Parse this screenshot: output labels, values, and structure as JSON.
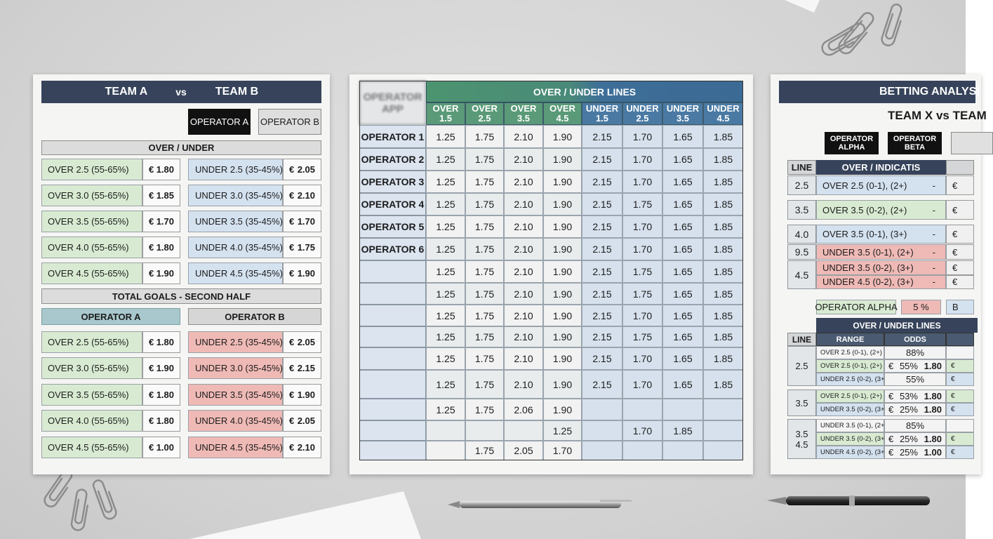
{
  "currency": "€",
  "sheet1": {
    "header": {
      "team_a": "TEAM A",
      "vs": "vs",
      "team_b": "TEAM B"
    },
    "buttons": [
      "OPERATOR A",
      "OPERATOR B"
    ],
    "section1": {
      "title": "OVER / UNDER",
      "rows": [
        {
          "over": "OVER 2.5 (55-65%)",
          "over_odds": "1.80",
          "under": "UNDER 2.5 (35-45%)",
          "under_odds": "2.05"
        },
        {
          "over": "OVER 3.0 (55-65%)",
          "over_odds": "1.85",
          "under": "UNDER 3.0 (35-45%)",
          "under_odds": "2.10"
        },
        {
          "over": "OVER 3.5 (55-65%)",
          "over_odds": "1.70",
          "under": "UNDER 3.5 (35-45%)",
          "under_odds": "1.70"
        },
        {
          "over": "OVER 4.0 (55-65%)",
          "over_odds": "1.80",
          "under": "UNDER 4.0 (35-45%)",
          "under_odds": "1.75"
        },
        {
          "over": "OVER 4.5 (55-65%)",
          "over_odds": "1.90",
          "under": "UNDER 4.5 (35-45%)",
          "under_odds": "1.90"
        }
      ]
    },
    "section2": {
      "title": "TOTAL GOALS - SECOND HALF",
      "columns": [
        "OPERATOR A",
        "OPERATOR B"
      ],
      "rows": [
        {
          "over": "OVER 2.5 (55-65%)",
          "over_odds": "1.80",
          "under": "UNDER 2.5 (35-45%)",
          "under_odds": "2.05"
        },
        {
          "over": "OVER 3.0 (55-65%)",
          "over_odds": "1.90",
          "under": "UNDER 3.0 (35-45%)",
          "under_odds": "2.15"
        },
        {
          "over": "OVER 3.5 (55-65%)",
          "over_odds": "1.80",
          "under": "UNDER 3.5 (35-45%)",
          "under_odds": "1.90"
        },
        {
          "over": "OVER 4.0 (55-65%)",
          "over_odds": "1.80",
          "under": "UNDER 4.0 (35-45%)",
          "under_odds": "2.05"
        },
        {
          "over": "OVER 4.5 (55-65%)",
          "over_odds": "1.00",
          "under": "UNDER 4.5 (35-45%)",
          "under_odds": "2.10"
        }
      ]
    }
  },
  "sheet2": {
    "corner": "OPERATOR APP",
    "title": "OVER / UNDER LINES",
    "columns": [
      "OVER 1.5",
      "OVER 2.5",
      "OVER 3.5",
      "OVER 4.5",
      "UNDER 1.5",
      "UNDER 2.5",
      "UNDER 3.5",
      "UNDER 4.5"
    ],
    "rows": [
      {
        "label": "OPERATOR 1",
        "values": [
          "1.25",
          "1.75",
          "2.10",
          "1.90",
          "2.15",
          "1.70",
          "1.65",
          "1.85"
        ]
      },
      {
        "label": "OPERATOR 2",
        "values": [
          "1.25",
          "1.75",
          "2.10",
          "1.90",
          "2.15",
          "1.70",
          "1.65",
          "1.85"
        ]
      },
      {
        "label": "OPERATOR 3",
        "values": [
          "1.25",
          "1.75",
          "2.10",
          "1.90",
          "2.15",
          "1.70",
          "1.65",
          "1.85"
        ]
      },
      {
        "label": "OPERATOR 4",
        "values": [
          "1.25",
          "1.75",
          "2.10",
          "1.90",
          "2.15",
          "1.75",
          "1.65",
          "1.85"
        ]
      },
      {
        "label": "OPERATOR 5",
        "values": [
          "1.25",
          "1.75",
          "2.10",
          "1.90",
          "2.15",
          "1.70",
          "1.65",
          "1.85"
        ]
      },
      {
        "label": "OPERATOR 6",
        "values": [
          "1.25",
          "1.75",
          "2.10",
          "1.90",
          "2.15",
          "1.70",
          "1.65",
          "1.85"
        ]
      },
      {
        "label": null,
        "values": [
          "1.25",
          "1.75",
          "2.10",
          "1.90",
          "2.15",
          "1.75",
          "1.65",
          "1.85"
        ]
      },
      {
        "label": null,
        "values": [
          "1.25",
          "1.75",
          "2.10",
          "1.90",
          "2.15",
          "1.75",
          "1.65",
          "1.85"
        ]
      },
      {
        "label": null,
        "values": [
          "1.25",
          "1.75",
          "2.10",
          "1.90",
          "2.15",
          "1.70",
          "1.65",
          "1.85"
        ]
      },
      {
        "label": null,
        "values": [
          "1.25",
          "1.75",
          "2.10",
          "1.90",
          "2.15",
          "1.75",
          "1.65",
          "1.85"
        ]
      },
      {
        "label": null,
        "values": [
          "1.25",
          "1.75",
          "2.10",
          "1.90",
          "2.15",
          "1.70",
          "1.65",
          "1.85"
        ]
      },
      {
        "label": null,
        "values": [
          "1.25",
          "1.75",
          "2.10",
          "1.90",
          "2.15",
          "1.70",
          "1.65",
          "1.85"
        ]
      },
      {
        "label": null,
        "values": [
          "1.25",
          "1.75",
          "2.06",
          "1.90",
          null,
          null,
          null,
          null
        ]
      },
      {
        "label": null,
        "values": [
          null,
          null,
          null,
          "1.25",
          null,
          "1.70",
          "1.85",
          null
        ]
      },
      {
        "label": null,
        "values": [
          null,
          "1.75",
          "2.05",
          "1.70",
          null,
          null,
          null,
          null
        ]
      }
    ]
  },
  "sheet3": {
    "title": "BETTING ANALYSI",
    "match": "TEAM X vs TEAM",
    "buttons": [
      "OPERATOR ALPHA",
      "OPERATOR BETA"
    ],
    "table1": {
      "columns": [
        "LINE",
        "OVER / INDICATIS"
      ],
      "rows": [
        {
          "line": "2.5",
          "tone": "blue",
          "items": [
            {
              "text": "OVER 2.5 (0-1), (2+)",
              "mark": "-"
            }
          ]
        },
        {
          "line": "3.5",
          "tone": "green",
          "items": [
            {
              "text": "OVER 3.5 (0-2), (2+)",
              "mark": "-"
            }
          ]
        },
        {
          "line": "4.0",
          "tone": "blue",
          "items": [
            {
              "text": "OVER 3.5 (0-1), (3+)",
              "mark": "-"
            }
          ]
        },
        {
          "line": "9.5",
          "tone": "pink",
          "items": [
            {
              "text": "UNDER 3.5 (0-1), (2+)",
              "mark": "-"
            }
          ]
        },
        {
          "line": "4.5",
          "tone": "pink",
          "items": [
            {
              "text": "UNDER 3.5 (0-2), (3+)",
              "mark": "-"
            },
            {
              "text": "UNDER 4.5 (0-2), (3+)",
              "mark": "-"
            }
          ]
        }
      ]
    },
    "summary": {
      "label": "OPERATOR ALPHA",
      "value": "5 %",
      "next": "B"
    },
    "table2": {
      "title": "OVER / UNDER LINES",
      "columns": [
        "LINE",
        "RANGE",
        "ODDS"
      ],
      "groups": [
        {
          "line": [
            "2.5"
          ],
          "rows": [
            {
              "tone": "white",
              "range": "OVER 2.5 (0-1), (2+)",
              "pct": "88%"
            },
            {
              "tone": "green",
              "range": "OVER 2.5 (0-1), (2+)",
              "pre": "€",
              "pct": "55%",
              "odds": "1.80",
              "post": "€"
            },
            {
              "tone": "blue",
              "range": "UNDER 2.5 (0-2), (3+)",
              "pct": "55%",
              "post": "€"
            }
          ]
        },
        {
          "line": [
            "3.5"
          ],
          "rows": [
            {
              "tone": "green",
              "range": "OVER 2.5 (0-1), (2+)",
              "pre": "€",
              "pct": "53%",
              "odds": "1.80",
              "post": "€"
            },
            {
              "tone": "blue",
              "range": "UNDER 3.5 (0-2), (3+)",
              "pre": "€",
              "pct": "25%",
              "odds": "1.80",
              "post": "€"
            }
          ]
        },
        {
          "line": [
            "3.5",
            "4.5"
          ],
          "rows": [
            {
              "tone": "white",
              "range": "UNDER 3.5 (0-1), (2+)",
              "pct": "85%"
            },
            {
              "tone": "green",
              "range": "UNDER 3.5 (0-2), (3+)",
              "pre": "€",
              "pct": "25%",
              "odds": "1.80",
              "post": "€"
            },
            {
              "tone": "blue",
              "range": "UNDER 4.5 (0-2), (3+)",
              "pre": "€",
              "pct": "25%",
              "odds": "1.00",
              "post": "€"
            }
          ]
        }
      ]
    }
  }
}
